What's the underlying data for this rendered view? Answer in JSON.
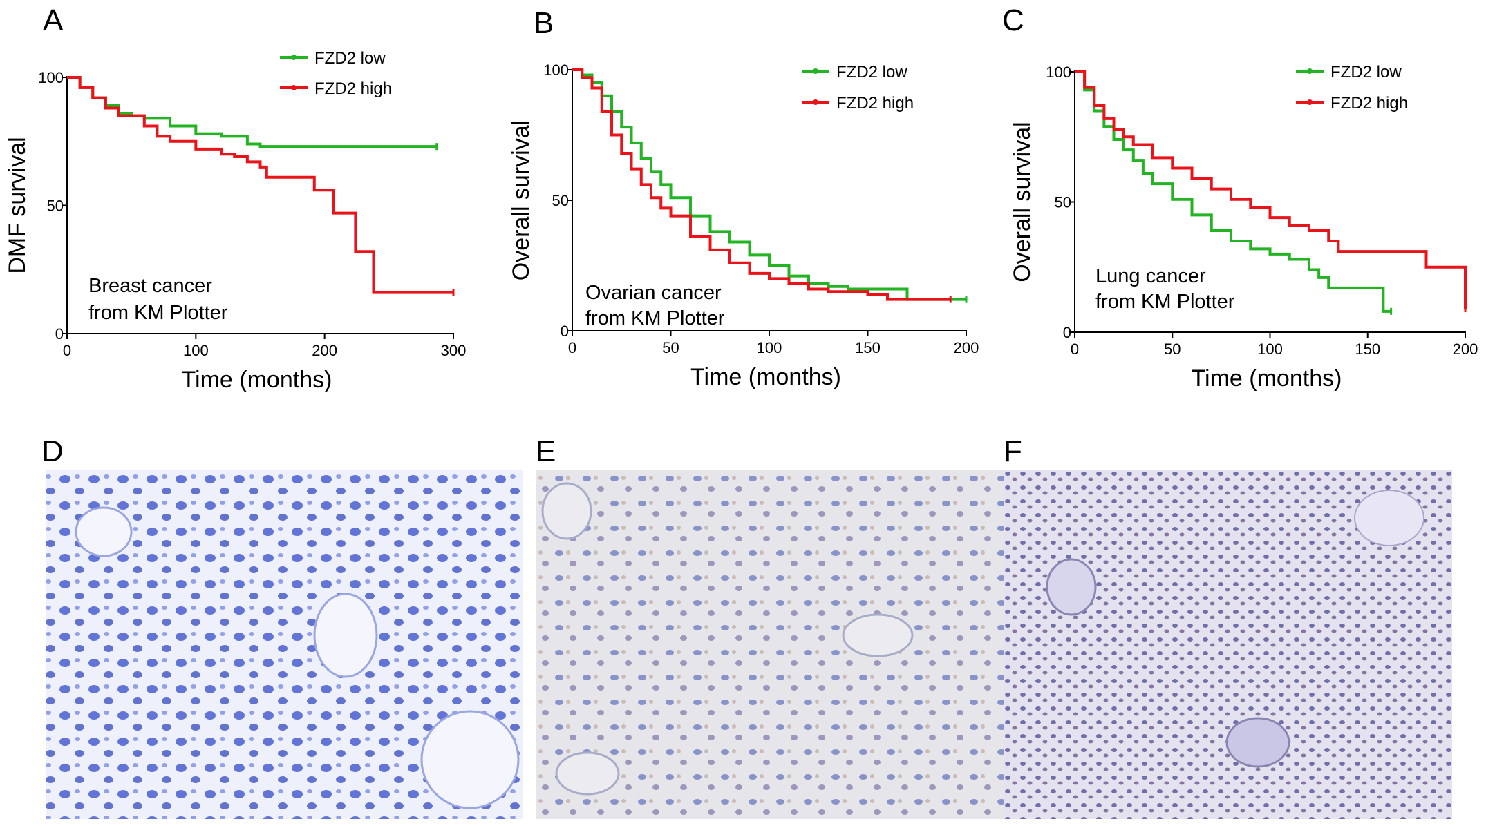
{
  "colors": {
    "low": "#22b422",
    "high": "#e8141a",
    "tissue_bg_d": "#eef0fb",
    "tissue_bg_e": "#e6e6ea",
    "tissue_bg_f": "#e4e2ef",
    "nuclei_d": "#4a5fd0",
    "nuclei_e": "#6877bf",
    "nuclei_f": "#5a5a9e",
    "stain_brown": "#a07a6a"
  },
  "micrographs": [
    {
      "letter": "D",
      "tone": "tissue_bg_d",
      "nuclei": "nuclei_d"
    },
    {
      "letter": "E",
      "tone": "tissue_bg_e",
      "nuclei": "nuclei_e"
    },
    {
      "letter": "F",
      "tone": "tissue_bg_f",
      "nuclei": "nuclei_f"
    }
  ],
  "chart_data": [
    {
      "type": "line",
      "letter": "A",
      "xlabel": "Time (months)",
      "ylabel": "DMF survival",
      "xlim": [
        0,
        300
      ],
      "ylim": [
        0,
        100
      ],
      "xticks": [
        0,
        100,
        200,
        300
      ],
      "yticks": [
        0,
        50,
        100
      ],
      "legend_position": "top-right",
      "annotation": [
        "Breast cancer",
        "from KM Plotter"
      ],
      "series": [
        {
          "name": "FZD2 low",
          "color_key": "low",
          "x": [
            0,
            10,
            20,
            30,
            40,
            50,
            60,
            80,
            100,
            120,
            140,
            150,
            160,
            200,
            250,
            287
          ],
          "y": [
            100,
            96,
            92,
            89,
            86,
            85,
            84,
            81,
            78,
            77,
            74,
            73,
            73,
            73,
            73,
            73
          ]
        },
        {
          "name": "FZD2 high",
          "color_key": "high",
          "x": [
            0,
            10,
            20,
            30,
            40,
            60,
            70,
            80,
            100,
            120,
            130,
            140,
            150,
            155,
            190,
            192,
            205,
            207,
            222,
            224,
            236,
            238,
            300
          ],
          "y": [
            100,
            96,
            92,
            88,
            85,
            81,
            77,
            75,
            72,
            70,
            69,
            67,
            65,
            61,
            61,
            56,
            56,
            47,
            47,
            32,
            32,
            16,
            16
          ]
        }
      ]
    },
    {
      "type": "line",
      "letter": "B",
      "xlabel": "Time (months)",
      "ylabel": "Overall survival",
      "xlim": [
        0,
        200
      ],
      "ylim": [
        0,
        100
      ],
      "xticks": [
        0,
        50,
        100,
        150,
        200
      ],
      "yticks": [
        0,
        50,
        100
      ],
      "legend_position": "top-right",
      "annotation": [
        "Ovarian cancer",
        "from KM Plotter"
      ],
      "series": [
        {
          "name": "FZD2 low",
          "color_key": "low",
          "x": [
            0,
            5,
            10,
            15,
            20,
            25,
            30,
            35,
            40,
            45,
            50,
            60,
            70,
            80,
            90,
            100,
            110,
            120,
            130,
            140,
            150,
            160,
            168,
            170,
            200
          ],
          "y": [
            100,
            98,
            95,
            90,
            84,
            78,
            72,
            66,
            61,
            56,
            51,
            44,
            38,
            34,
            29,
            25,
            21,
            18,
            17,
            16,
            16,
            16,
            16,
            12,
            12
          ]
        },
        {
          "name": "FZD2 high",
          "color_key": "high",
          "x": [
            0,
            5,
            10,
            15,
            20,
            25,
            30,
            35,
            40,
            45,
            50,
            60,
            70,
            80,
            90,
            100,
            110,
            120,
            130,
            140,
            150,
            160,
            192
          ],
          "y": [
            100,
            97,
            93,
            84,
            75,
            68,
            62,
            56,
            51,
            47,
            44,
            36,
            31,
            26,
            22,
            20,
            18,
            16,
            15,
            15,
            14,
            12,
            12
          ]
        }
      ]
    },
    {
      "type": "line",
      "letter": "C",
      "xlabel": "Time (months)",
      "ylabel": "Overall survival",
      "xlim": [
        0,
        200
      ],
      "ylim": [
        0,
        100
      ],
      "xticks": [
        0,
        50,
        100,
        150,
        200
      ],
      "yticks": [
        0,
        50,
        100
      ],
      "legend_position": "top-right",
      "annotation": [
        "Lung cancer",
        "from KM Plotter"
      ],
      "series": [
        {
          "name": "FZD2 low",
          "color_key": "low",
          "x": [
            0,
            5,
            10,
            15,
            20,
            25,
            30,
            35,
            40,
            50,
            60,
            70,
            80,
            90,
            100,
            110,
            120,
            125,
            130,
            140,
            150,
            157,
            158,
            162
          ],
          "y": [
            100,
            93,
            85,
            79,
            74,
            70,
            66,
            61,
            57,
            51,
            45,
            39,
            35,
            32,
            30,
            28,
            24,
            21,
            17,
            17,
            17,
            17,
            8,
            8
          ]
        },
        {
          "name": "FZD2 high",
          "color_key": "high",
          "x": [
            0,
            5,
            10,
            15,
            20,
            25,
            30,
            40,
            50,
            60,
            70,
            80,
            90,
            100,
            110,
            120,
            130,
            135,
            140,
            150,
            160,
            170,
            178,
            180,
            190,
            198,
            200
          ],
          "y": [
            100,
            94,
            87,
            82,
            78,
            75,
            72,
            67,
            63,
            59,
            55,
            51,
            48,
            44,
            41,
            39,
            35,
            31,
            31,
            31,
            31,
            31,
            31,
            25,
            25,
            25,
            9
          ]
        }
      ]
    }
  ]
}
